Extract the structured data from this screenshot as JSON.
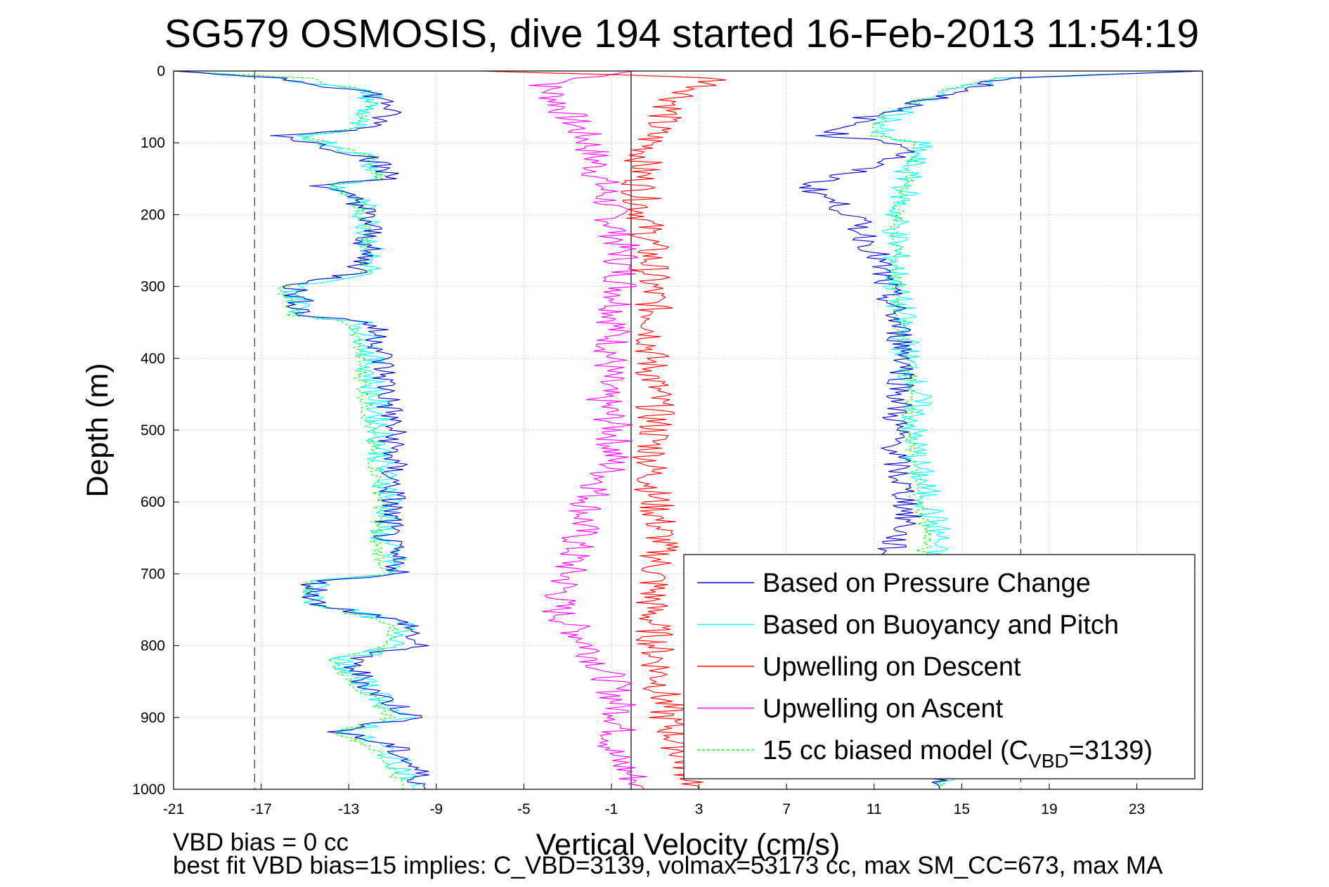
{
  "chart_data": {
    "type": "line",
    "title": "SG579 OSMOSIS, dive 194 started 16-Feb-2013 11:54:19",
    "xlabel": "Vertical Velocity (cm/s)",
    "ylabel": "Depth (m)",
    "xlim": [
      -21,
      26
    ],
    "ylim": [
      0,
      1000
    ],
    "y_reversed": true,
    "xticks": [
      "-21",
      "-17",
      "-13",
      "-9",
      "-5",
      "-1",
      "3",
      "7",
      "11",
      "15",
      "19",
      "23"
    ],
    "yticks": [
      "0",
      "100",
      "200",
      "300",
      "400",
      "500",
      "600",
      "700",
      "800",
      "900",
      "1000"
    ],
    "grid": true,
    "legend_position": "bottom-right",
    "reference_lines": {
      "dashed_x": [
        -17.3,
        17.7
      ],
      "solid_x": -0.1
    },
    "colors": {
      "Based on Pressure Change": "#0000cc",
      "Based on Buoyancy and Pitch": "#00ffff",
      "Upwelling on Descent": "#ff0000",
      "Upwelling on Ascent": "#ff00ff",
      "15 cc biased model": "#00ff00"
    },
    "series": [
      {
        "name": "Based on Pressure Change",
        "group": "descent",
        "x": [
          -21.0,
          -16.0,
          -12.0,
          -11.0,
          -12.0,
          -16.0,
          -12.0,
          -11.0,
          -14.5,
          -12.5,
          -12.0,
          -12.5,
          -15.5,
          -15.0,
          -12.0,
          -11.5,
          -11.5,
          -11.2,
          -11.0,
          -11.0,
          -11.0,
          -11.3,
          -11.0,
          -10.5,
          -14.5,
          -14.5,
          -10.2,
          -10.0,
          -13.0,
          -12.0,
          -10.0,
          -13.5,
          -11.0,
          -10.0,
          -9.5
        ],
        "depth": [
          0,
          10,
          30,
          50,
          80,
          90,
          120,
          150,
          160,
          180,
          220,
          280,
          300,
          340,
          350,
          380,
          400,
          450,
          500,
          550,
          600,
          650,
          680,
          700,
          710,
          740,
          770,
          800,
          820,
          860,
          900,
          920,
          940,
          970,
          1000
        ]
      },
      {
        "name": "Based on Buoyancy and Pitch",
        "group": "descent",
        "x": [
          -21.0,
          -16.0,
          -12.0,
          -12.0,
          -13.0,
          -15.0,
          -12.0,
          -11.5,
          -14.0,
          -12.5,
          -12.0,
          -12.0,
          -15.5,
          -15.0,
          -12.5,
          -12.0,
          -12.0,
          -11.8,
          -11.5,
          -11.5,
          -11.0,
          -11.5,
          -11.0,
          -11.0,
          -14.5,
          -14.5,
          -10.5,
          -10.5,
          -13.5,
          -12.0,
          -10.5,
          -13.0,
          -11.5,
          -10.5,
          -10.0
        ],
        "depth": [
          0,
          10,
          30,
          50,
          80,
          90,
          120,
          150,
          160,
          180,
          220,
          280,
          300,
          340,
          350,
          380,
          400,
          450,
          500,
          550,
          600,
          650,
          680,
          700,
          710,
          740,
          770,
          800,
          820,
          860,
          900,
          920,
          940,
          970,
          1000
        ]
      },
      {
        "name": "15 cc biased model",
        "group": "descent",
        "x": [
          -21.0,
          -15.0,
          -12.0,
          -12.0,
          -13.0,
          -15.0,
          -12.0,
          -11.5,
          -14.0,
          -12.5,
          -12.2,
          -12.2,
          -16.0,
          -15.5,
          -13.0,
          -12.5,
          -12.5,
          -12.3,
          -12.0,
          -11.8,
          -11.5,
          -11.8,
          -11.5,
          -11.2,
          -15.0,
          -14.8,
          -11.0,
          -11.0,
          -13.8,
          -12.5,
          -11.0,
          -13.5,
          -12.0,
          -11.0,
          -10.5
        ],
        "depth": [
          0,
          10,
          30,
          50,
          80,
          90,
          120,
          150,
          160,
          180,
          220,
          280,
          300,
          340,
          350,
          380,
          400,
          450,
          500,
          550,
          600,
          650,
          680,
          700,
          710,
          740,
          770,
          800,
          820,
          860,
          900,
          920,
          940,
          970,
          1000
        ]
      },
      {
        "name": "Based on Pressure Change",
        "group": "ascent",
        "x": [
          26.0,
          17.0,
          15.0,
          11.0,
          9.0,
          12.0,
          13.0,
          10.0,
          8.0,
          10.0,
          11.0,
          11.5,
          12.0,
          12.5,
          12.2,
          12.0,
          12.0,
          12.0,
          12.5,
          12.5,
          12.0,
          11.5,
          11.0,
          14.0
        ],
        "depth": [
          0,
          10,
          30,
          60,
          90,
          100,
          110,
          140,
          160,
          200,
          250,
          300,
          350,
          400,
          450,
          480,
          500,
          550,
          600,
          630,
          650,
          680,
          700,
          1000
        ]
      },
      {
        "name": "Based on Buoyancy and Pitch",
        "group": "ascent",
        "x": [
          26.0,
          17.0,
          14.0,
          12.0,
          11.0,
          13.0,
          13.0,
          12.5,
          12.5,
          12.0,
          12.0,
          12.0,
          12.3,
          12.5,
          13.0,
          12.8,
          13.0,
          13.5,
          14.0,
          13.5,
          13.5,
          14.0
        ],
        "depth": [
          0,
          10,
          30,
          60,
          90,
          100,
          110,
          140,
          160,
          200,
          250,
          300,
          350,
          400,
          450,
          500,
          550,
          600,
          650,
          680,
          700,
          1000
        ]
      },
      {
        "name": "15 cc biased model",
        "group": "ascent",
        "x": [
          26.0,
          16.5,
          14.0,
          11.5,
          11.0,
          13.0,
          13.0,
          12.5,
          12.5,
          12.0,
          12.0,
          12.0,
          12.2,
          12.5,
          12.8,
          12.5,
          12.8,
          13.0,
          13.5,
          13.0,
          13.0,
          14.0
        ],
        "depth": [
          0,
          10,
          30,
          60,
          90,
          100,
          110,
          140,
          160,
          200,
          250,
          300,
          350,
          400,
          450,
          500,
          550,
          600,
          650,
          680,
          700,
          1000
        ]
      },
      {
        "name": "Upwelling on Descent",
        "x": [
          -7.0,
          4.0,
          2.0,
          1.0,
          0.5,
          0.3,
          0.5,
          0.8,
          0.8,
          1.0,
          0.8,
          1.0,
          1.0,
          0.8,
          1.0,
          1.3,
          1.0,
          0.8,
          1.5,
          3.0
        ],
        "depth": [
          0,
          10,
          40,
          80,
          120,
          160,
          200,
          250,
          300,
          350,
          400,
          450,
          500,
          550,
          600,
          650,
          700,
          750,
          900,
          1000
        ]
      },
      {
        "name": "Upwelling on Ascent",
        "x": [
          0.0,
          -4.0,
          -3.0,
          -2.0,
          -1.5,
          -1.0,
          -0.5,
          -0.5,
          -0.8,
          -1.0,
          -1.5,
          -0.8,
          -1.0,
          -2.0,
          -2.5,
          -3.0,
          -3.5,
          -2.0,
          -1.0,
          -0.5,
          -1.0,
          0.5
        ],
        "depth": [
          0,
          20,
          60,
          100,
          150,
          200,
          250,
          300,
          350,
          400,
          450,
          500,
          550,
          600,
          650,
          700,
          750,
          800,
          850,
          900,
          950,
          1000
        ]
      }
    ],
    "legend_entries": [
      {
        "key": "pressure",
        "label": "Based on Pressure Change",
        "color": "#0000cc",
        "dashed": false
      },
      {
        "key": "buoyancy",
        "label": "Based on Buoyancy and Pitch",
        "color": "#00ffff",
        "dashed": false
      },
      {
        "key": "descent",
        "label": "Upwelling on Descent",
        "color": "#ff0000",
        "dashed": false
      },
      {
        "key": "ascent",
        "label": "Upwelling on Ascent",
        "color": "#ff00ff",
        "dashed": false
      },
      {
        "key": "model",
        "label": "15 cc biased model (C",
        "sub": "VBD",
        "tail": "=3139)",
        "color": "#00ff00",
        "dashed": true
      }
    ]
  },
  "footer": {
    "line1": "VBD bias = 0 cc",
    "line2": "best fit VBD bias=15 implies: C_VBD=3139, volmax=53173 cc, max SM_CC=673, max MA"
  }
}
